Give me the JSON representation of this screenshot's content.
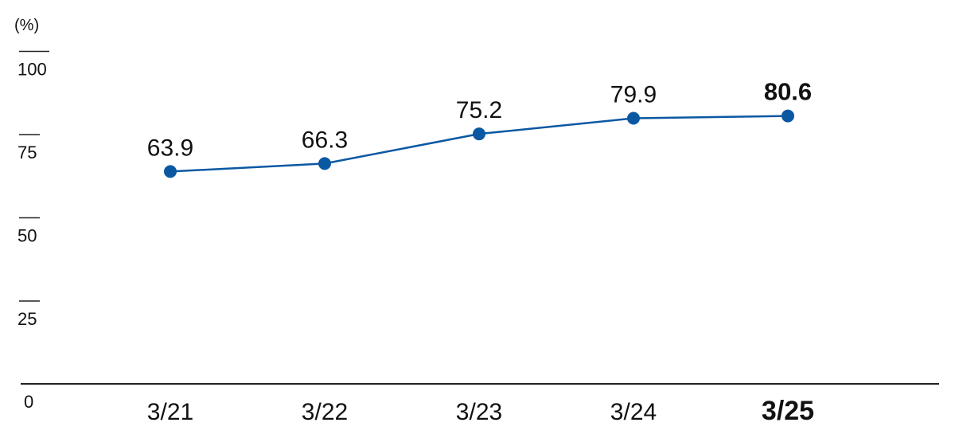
{
  "chart_data": {
    "type": "line",
    "title": "",
    "ylabel": "(%)",
    "xlabel": "",
    "ylim": [
      0,
      100
    ],
    "yticks": [
      "0",
      "25",
      "50",
      "75",
      "100"
    ],
    "grid": false,
    "categories": [
      "3/21",
      "3/22",
      "3/23",
      "3/24",
      "3/25"
    ],
    "values": [
      63.9,
      66.3,
      75.2,
      79.9,
      80.6
    ],
    "value_labels": [
      "63.9",
      "66.3",
      "75.2",
      "79.9",
      "80.6"
    ],
    "highlight_index": 4,
    "line_color": "#0b58a2",
    "text_color": "#111111"
  }
}
